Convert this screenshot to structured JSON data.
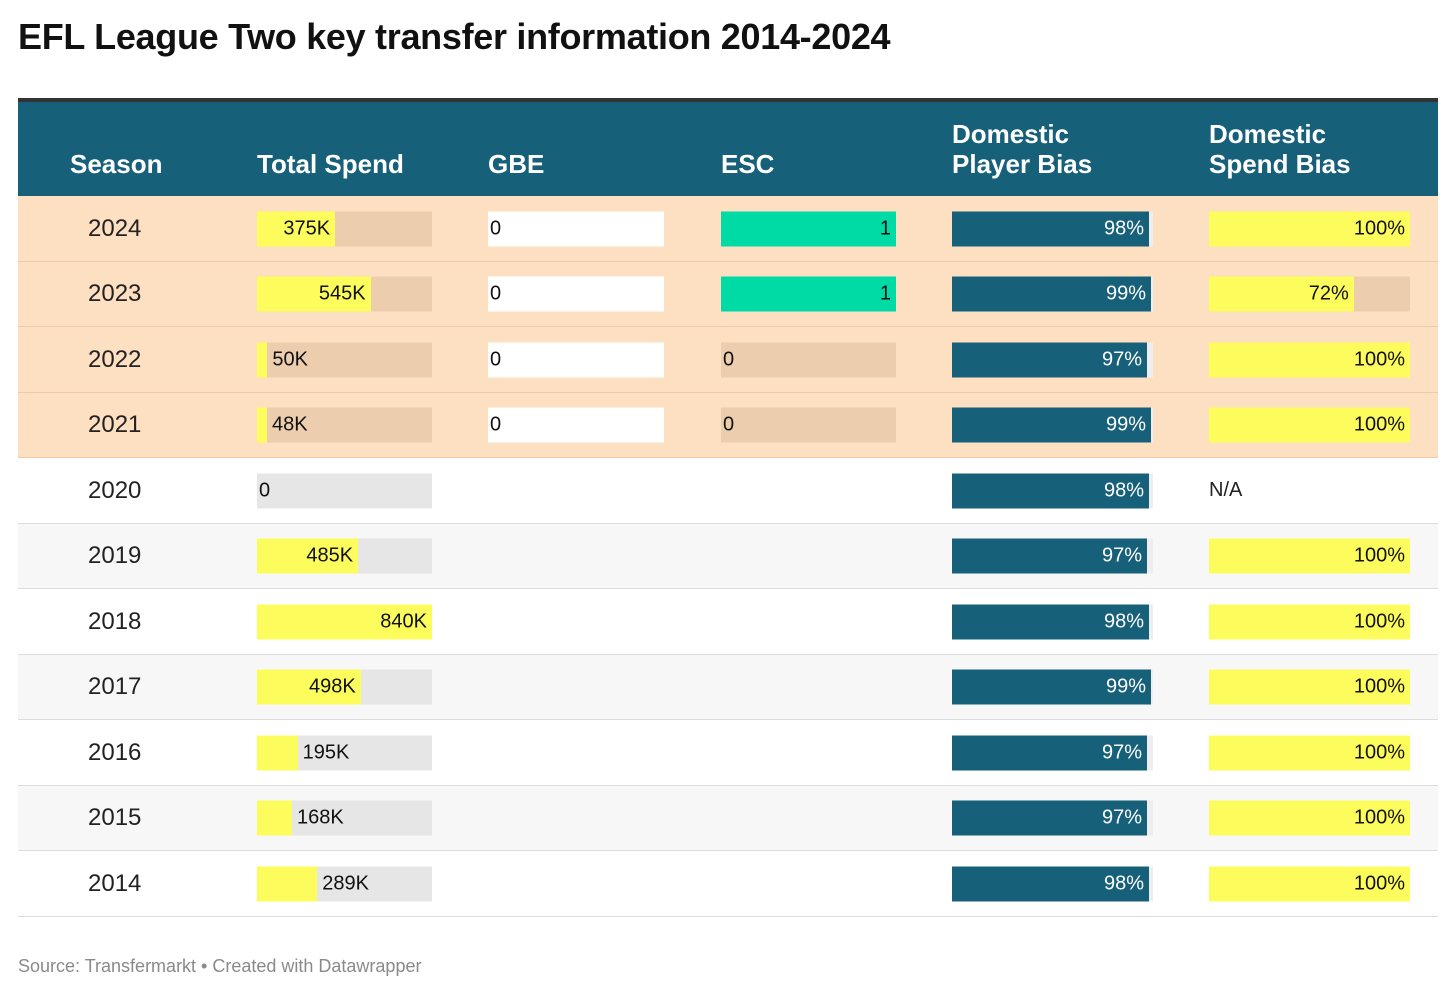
{
  "title": "EFL League Two key transfer information 2014-2024",
  "footer": "Source: Transfermarkt • Created with Datawrapper",
  "colors": {
    "header_bg": "#17607a",
    "highlight_row": "#fddfc1",
    "highlight_bar_bg": "#eccdae",
    "stripe_row": "#f7f7f7",
    "plain_bar_bg": "#e6e6e6",
    "spend_fill": "#fcfc5d",
    "esc_fill": "#00dba6",
    "player_fill": "#17607a"
  },
  "chart_data": {
    "type": "table",
    "columns": [
      "Season",
      "Total Spend",
      "GBE",
      "ESC",
      "Domestic Player Bias",
      "Domestic Spend Bias"
    ],
    "header_lines": [
      [
        "Season"
      ],
      [
        "Total Spend"
      ],
      [
        "GBE"
      ],
      [
        "ESC"
      ],
      [
        "Domestic",
        "Player Bias"
      ],
      [
        "Domestic",
        "Spend Bias"
      ]
    ],
    "highlighted_seasons": [
      "2024",
      "2023",
      "2022",
      "2021"
    ],
    "scales": {
      "total_spend_max": 840000,
      "esc_max": 1,
      "percent_max": 100
    },
    "rows": [
      {
        "season": "2024",
        "total_spend": 375000,
        "total_spend_label": "375K",
        "gbe": 0,
        "gbe_label": "0",
        "esc": 1,
        "esc_label": "1",
        "player_bias": 98,
        "player_bias_label": "98%",
        "spend_bias": 100,
        "spend_bias_label": "100%"
      },
      {
        "season": "2023",
        "total_spend": 545000,
        "total_spend_label": "545K",
        "gbe": 0,
        "gbe_label": "0",
        "esc": 1,
        "esc_label": "1",
        "player_bias": 99,
        "player_bias_label": "99%",
        "spend_bias": 72,
        "spend_bias_label": "72%"
      },
      {
        "season": "2022",
        "total_spend": 50000,
        "total_spend_label": "50K",
        "gbe": 0,
        "gbe_label": "0",
        "esc": 0,
        "esc_label": "0",
        "player_bias": 97,
        "player_bias_label": "97%",
        "spend_bias": 100,
        "spend_bias_label": "100%"
      },
      {
        "season": "2021",
        "total_spend": 48000,
        "total_spend_label": "48K",
        "gbe": 0,
        "gbe_label": "0",
        "esc": 0,
        "esc_label": "0",
        "player_bias": 99,
        "player_bias_label": "99%",
        "spend_bias": 100,
        "spend_bias_label": "100%"
      },
      {
        "season": "2020",
        "total_spend": 0,
        "total_spend_label": "0",
        "gbe": null,
        "gbe_label": "",
        "esc": null,
        "esc_label": "",
        "player_bias": 98,
        "player_bias_label": "98%",
        "spend_bias": null,
        "spend_bias_label": "N/A"
      },
      {
        "season": "2019",
        "total_spend": 485000,
        "total_spend_label": "485K",
        "gbe": null,
        "gbe_label": "",
        "esc": null,
        "esc_label": "",
        "player_bias": 97,
        "player_bias_label": "97%",
        "spend_bias": 100,
        "spend_bias_label": "100%"
      },
      {
        "season": "2018",
        "total_spend": 840000,
        "total_spend_label": "840K",
        "gbe": null,
        "gbe_label": "",
        "esc": null,
        "esc_label": "",
        "player_bias": 98,
        "player_bias_label": "98%",
        "spend_bias": 100,
        "spend_bias_label": "100%"
      },
      {
        "season": "2017",
        "total_spend": 498000,
        "total_spend_label": "498K",
        "gbe": null,
        "gbe_label": "",
        "esc": null,
        "esc_label": "",
        "player_bias": 99,
        "player_bias_label": "99%",
        "spend_bias": 100,
        "spend_bias_label": "100%"
      },
      {
        "season": "2016",
        "total_spend": 195000,
        "total_spend_label": "195K",
        "gbe": null,
        "gbe_label": "",
        "esc": null,
        "esc_label": "",
        "player_bias": 97,
        "player_bias_label": "97%",
        "spend_bias": 100,
        "spend_bias_label": "100%"
      },
      {
        "season": "2015",
        "total_spend": 168000,
        "total_spend_label": "168K",
        "gbe": null,
        "gbe_label": "",
        "esc": null,
        "esc_label": "",
        "player_bias": 97,
        "player_bias_label": "97%",
        "spend_bias": 100,
        "spend_bias_label": "100%"
      },
      {
        "season": "2014",
        "total_spend": 289000,
        "total_spend_label": "289K",
        "gbe": null,
        "gbe_label": "",
        "esc": null,
        "esc_label": "",
        "player_bias": 98,
        "player_bias_label": "98%",
        "spend_bias": 100,
        "spend_bias_label": "100%"
      }
    ]
  }
}
